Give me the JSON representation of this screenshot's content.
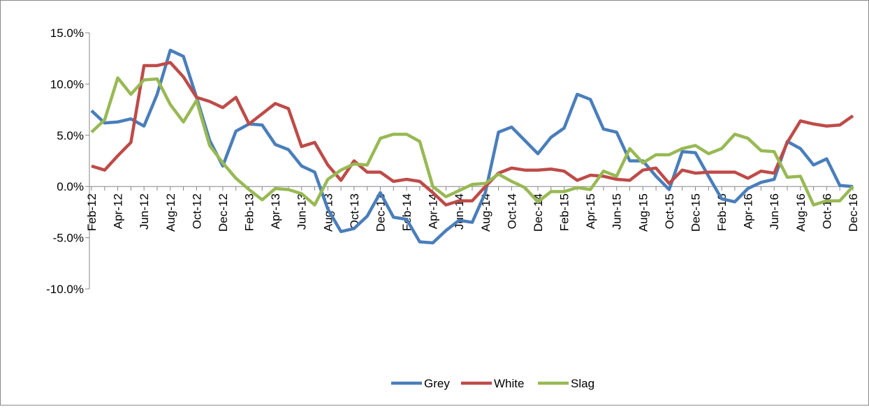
{
  "chart_data": {
    "type": "line",
    "categories": [
      "Feb-12",
      null,
      "Apr-12",
      null,
      "Jun-12",
      null,
      "Aug-12",
      null,
      "Oct-12",
      null,
      "Dec-12",
      null,
      "Feb-13",
      null,
      "Apr-13",
      null,
      "Jun-13",
      null,
      "Aug-13",
      null,
      "Oct-13",
      null,
      "Dec-13",
      null,
      "Feb-14",
      null,
      "Apr-14",
      null,
      "Jun-14",
      null,
      "Aug-14",
      null,
      "Oct-14",
      null,
      "Dec-14",
      null,
      "Feb-15",
      null,
      "Apr-15",
      null,
      "Jun-15",
      null,
      "Aug-15",
      null,
      "Oct-15",
      null,
      "Dec-15",
      null,
      "Feb-16",
      null,
      "Apr-16",
      null,
      "Jun-16",
      null,
      "Aug-16",
      null,
      "Oct-16",
      null,
      "Dec-16"
    ],
    "series": [
      {
        "name": "Grey",
        "color": "#4a7ebb",
        "values": [
          7.4,
          6.2,
          6.3,
          6.6,
          5.9,
          9.0,
          13.3,
          12.7,
          8.7,
          4.5,
          2.0,
          5.4,
          6.1,
          6.0,
          4.1,
          3.6,
          2.0,
          1.4,
          -2.2,
          -4.4,
          -4.1,
          -2.9,
          -0.6,
          -3.0,
          -3.2,
          -5.4,
          -5.5,
          -4.3,
          -3.3,
          -3.5,
          -0.6,
          5.3,
          5.8,
          4.5,
          3.2,
          4.8,
          5.7,
          9.0,
          8.5,
          5.6,
          5.3,
          2.5,
          2.5,
          1.0,
          -0.3,
          3.4,
          3.3,
          1.0,
          -1.2,
          -1.5,
          -0.2,
          0.4,
          0.7,
          4.4,
          3.7,
          2.1,
          2.7,
          0.1,
          0.0
        ]
      },
      {
        "name": "White",
        "color": "#be4b48",
        "values": [
          2.0,
          1.6,
          3.0,
          4.3,
          11.8,
          11.8,
          12.1,
          10.7,
          8.7,
          8.3,
          7.7,
          8.7,
          6.1,
          7.1,
          8.1,
          7.6,
          3.9,
          4.3,
          2.1,
          0.6,
          2.5,
          1.4,
          1.4,
          0.5,
          0.7,
          0.5,
          -0.6,
          -1.8,
          -1.4,
          -1.4,
          0.0,
          1.3,
          1.8,
          1.6,
          1.6,
          1.7,
          1.5,
          0.6,
          1.1,
          1.0,
          0.7,
          0.6,
          1.6,
          1.8,
          0.3,
          1.6,
          1.3,
          1.4,
          1.4,
          1.4,
          0.8,
          1.5,
          1.3,
          4.3,
          6.4,
          6.1,
          5.9,
          6.0,
          6.9
        ]
      },
      {
        "name": "Slag",
        "color": "#98b954",
        "values": [
          5.3,
          6.5,
          10.6,
          9.0,
          10.4,
          10.5,
          8.0,
          6.3,
          8.4,
          4.0,
          2.3,
          0.8,
          -0.3,
          -1.3,
          -0.2,
          -0.3,
          -0.7,
          -1.8,
          0.7,
          1.6,
          2.2,
          2.1,
          4.7,
          5.1,
          5.1,
          4.4,
          0.0,
          -1.0,
          -0.4,
          0.2,
          0.3,
          1.2,
          0.5,
          -0.1,
          -1.5,
          -0.5,
          -0.5,
          -0.1,
          -0.3,
          1.5,
          1.0,
          3.7,
          2.3,
          3.1,
          3.1,
          3.7,
          4.0,
          3.2,
          3.7,
          5.1,
          4.7,
          3.5,
          3.4,
          0.9,
          1.0,
          -1.8,
          -1.4,
          -1.4,
          0.0
        ]
      }
    ],
    "ylim": [
      -10,
      15
    ],
    "yticks": [
      {
        "value": -10,
        "label": "-10.0%"
      },
      {
        "value": -5,
        "label": "-5.0%"
      },
      {
        "value": 0,
        "label": "0.0%"
      },
      {
        "value": 5,
        "label": "5.0%"
      },
      {
        "value": 10,
        "label": "10.0%"
      },
      {
        "value": 15,
        "label": "15.0%"
      }
    ],
    "legend": "bottom"
  }
}
